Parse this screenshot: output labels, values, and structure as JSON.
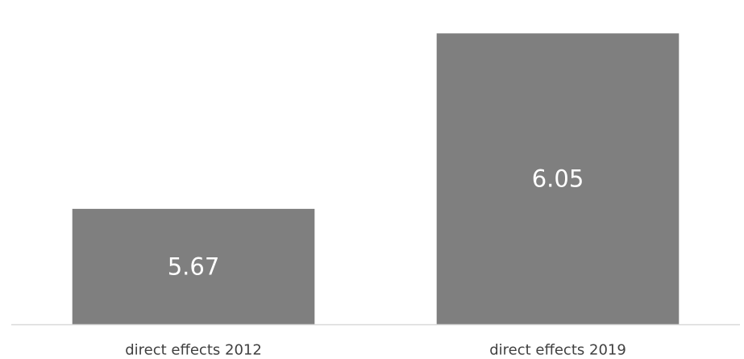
{
  "chart_data": {
    "type": "bar",
    "categories": [
      "direct effects 2012",
      "direct effects 2019"
    ],
    "values": [
      5.67,
      6.05
    ],
    "data_labels": [
      "5.67",
      "6.05"
    ],
    "title": "",
    "xlabel": "",
    "ylabel": "",
    "ylim": [
      5.42,
      6.11
    ],
    "grid": false,
    "legend": "none",
    "bar_color": "#7f7f7f",
    "axis_color": "#d9d9d9",
    "label_color": "#ffffff",
    "tick_color": "#404040"
  }
}
